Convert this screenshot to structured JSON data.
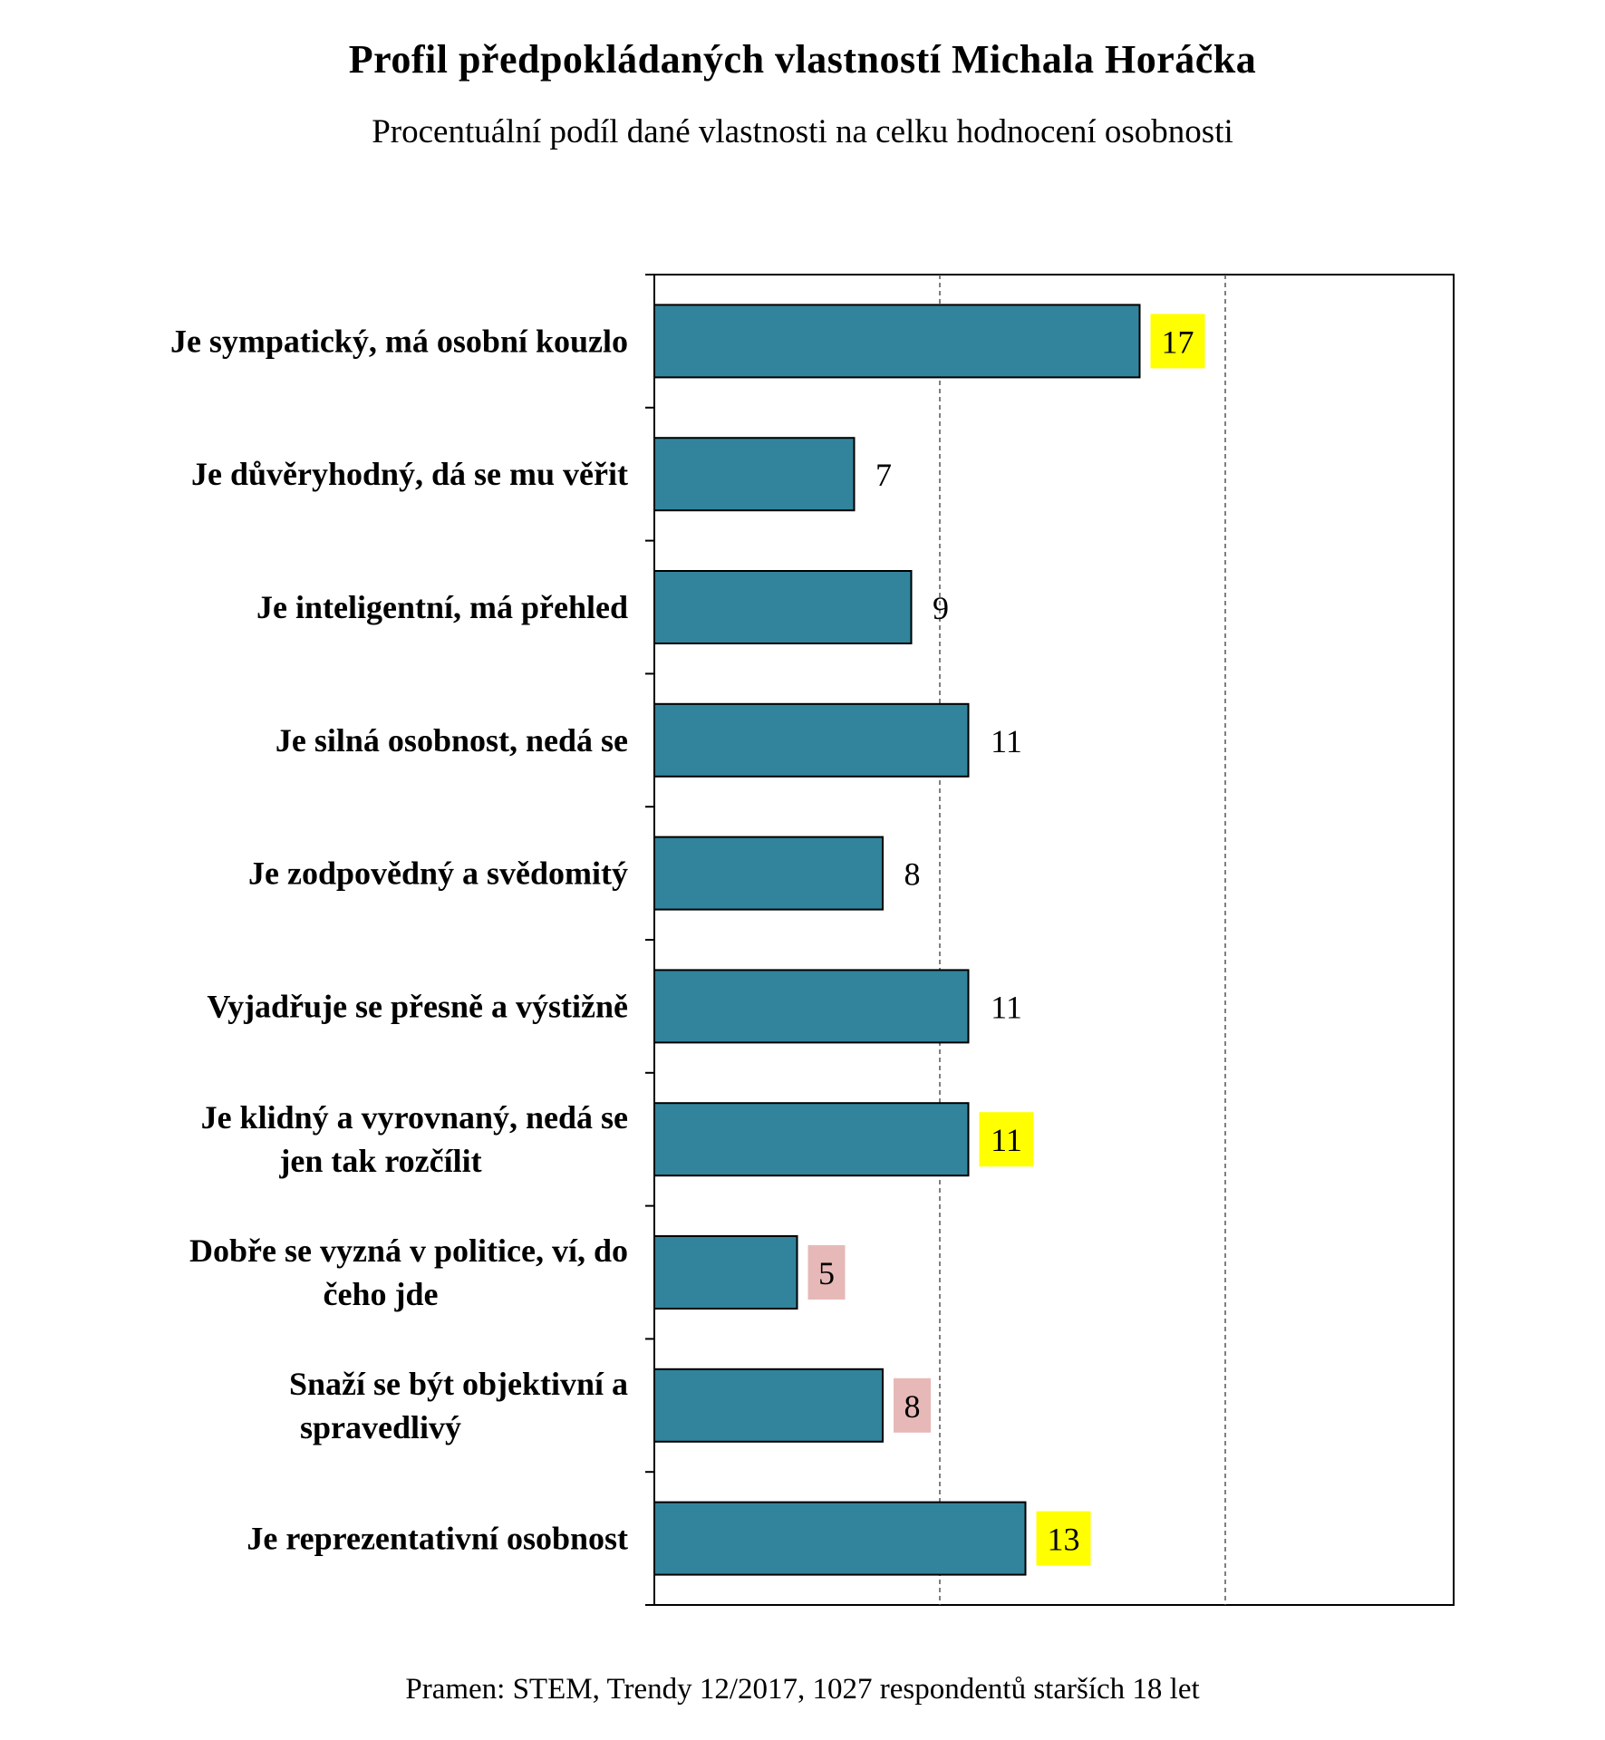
{
  "header": {
    "title": "Profil předpokládaných  vlastností Michala  Horáčka",
    "subtitle": "Procentuální podíl dané vlastnosti na celku hodnocení osobnosti"
  },
  "footer": {
    "source": "Pramen: STEM,  Trendy 12/2017,  1027 respondentů  starších  18 let"
  },
  "chart_data": {
    "type": "bar",
    "orientation": "horizontal",
    "title": "Profil předpokládaných  vlastností Michala  Horáčka",
    "subtitle": "Procentuální podíl dané vlastnosti na celku hodnocení osobnosti",
    "categories": [
      [
        "Je sympatický, má osobní kouzlo"
      ],
      [
        "Je důvěryhodný, dá se mu věřit"
      ],
      [
        "Je inteligentní, má přehled"
      ],
      [
        "Je silná osobnost, nedá se"
      ],
      [
        "Je zodpovědný  a svědomitý"
      ],
      [
        "Vyjadřuje se přesně a výstižně"
      ],
      [
        "Je klidný a vyrovnaný, nedá se",
        "jen tak rozčílit"
      ],
      [
        "Dobře se vyzná v politice, ví, do",
        "čeho jde"
      ],
      [
        "Snaží se být objektivní a",
        "spravedlivý"
      ],
      [
        "Je reprezentativní osobnost"
      ]
    ],
    "values": [
      17,
      7,
      9,
      11,
      8,
      11,
      11,
      5,
      8,
      13
    ],
    "value_labels": [
      "17",
      "7",
      "9",
      "11",
      "8",
      "11",
      "11",
      "5",
      "8",
      "13"
    ],
    "label_highlights": [
      "yellow",
      "none",
      "none",
      "none",
      "none",
      "none",
      "yellow",
      "pink",
      "pink",
      "yellow"
    ],
    "xlim": [
      0,
      28
    ],
    "gridlines": [
      10,
      20
    ],
    "grid": "dashed vertical",
    "legend": "none",
    "colors": {
      "bar": "#31849b",
      "bar_edge": "#000000",
      "highlight_yellow": "#ffff00",
      "highlight_pink": "#e6b9b8"
    }
  }
}
